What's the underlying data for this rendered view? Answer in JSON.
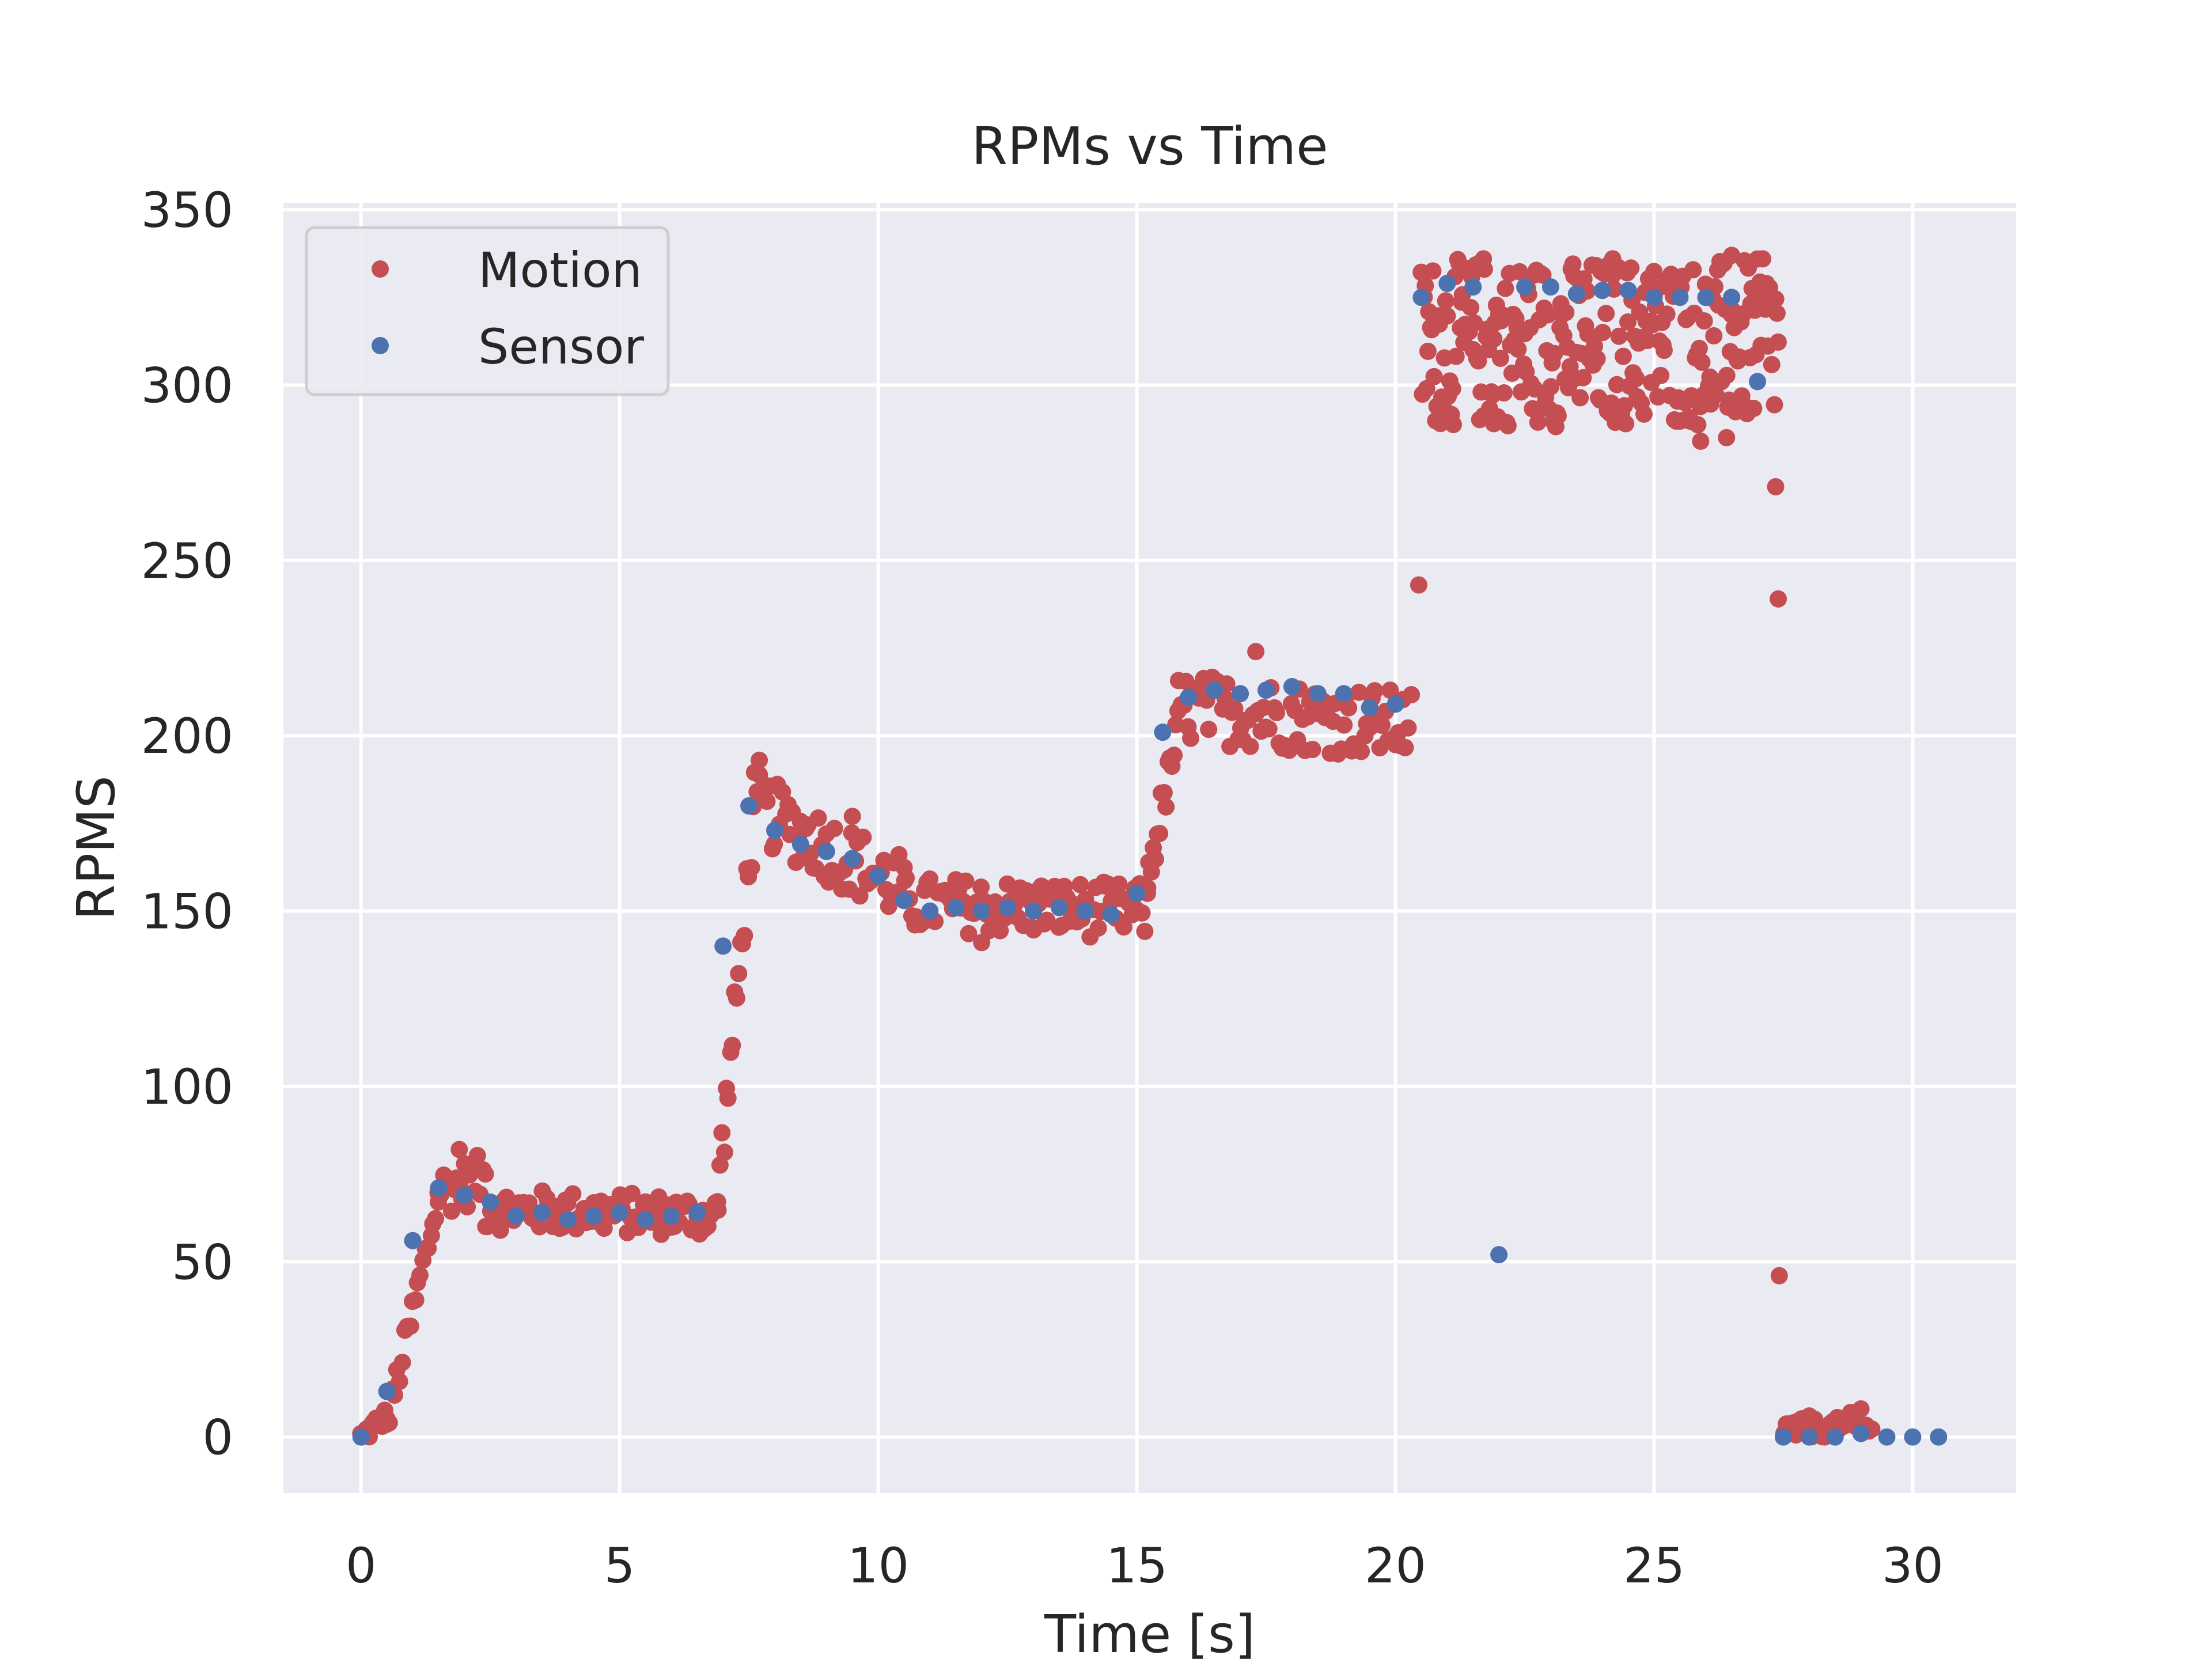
{
  "chart_data": {
    "type": "scatter",
    "title": "RPMs vs Time",
    "xlabel": "Time [s]",
    "ylabel": "RPMS",
    "xlim": [
      -1.5,
      32
    ],
    "ylim": [
      -16,
      352
    ],
    "xticks": [
      0,
      5,
      10,
      15,
      20,
      25,
      30
    ],
    "xtick_labels": [
      "0",
      "5",
      "10",
      "15",
      "20",
      "25",
      "30"
    ],
    "yticks": [
      0,
      50,
      100,
      150,
      200,
      250,
      300,
      350
    ],
    "ytick_labels": [
      "0",
      "50",
      "100",
      "150",
      "200",
      "250",
      "300",
      "350"
    ],
    "grid": true,
    "legend_position": "top-left",
    "colors": {
      "plot_background": "#EAEAF2",
      "grid": "#FFFFFF",
      "motion": "#C44E52",
      "sensor": "#4C72B0"
    },
    "series": [
      {
        "name": "Motion",
        "color": "#C44E52",
        "segments": [
          {
            "x_start": 0.0,
            "x_end": 0.5,
            "y_start": 0,
            "y_end": 6,
            "noise": 3,
            "step": 0.05
          },
          {
            "x_start": 0.5,
            "x_end": 1.5,
            "y_start": 3,
            "y_end": 68,
            "noise": 5,
            "step": 0.05
          },
          {
            "x_start": 1.5,
            "x_end": 2.4,
            "y_start": 70,
            "y_end": 74,
            "noise": 7,
            "step": 0.05
          },
          {
            "x_start": 2.4,
            "x_end": 6.9,
            "y_start": 65,
            "y_end": 63,
            "noise": 6,
            "step": 0.05
          },
          {
            "x_start": 6.9,
            "x_end": 7.6,
            "y_start": 70,
            "y_end": 178,
            "noise": 8,
            "step": 0.04
          },
          {
            "x_start": 7.6,
            "x_end": 10.5,
            "y_start": 180,
            "y_end": 156,
            "noise": 10,
            "step": 0.05
          },
          {
            "x_start": 10.5,
            "x_end": 15.2,
            "y_start": 152,
            "y_end": 150,
            "noise": 8,
            "step": 0.05
          },
          {
            "x_start": 15.2,
            "x_end": 15.8,
            "y_start": 158,
            "y_end": 202,
            "noise": 6,
            "step": 0.04
          },
          {
            "x_start": 15.8,
            "x_end": 20.3,
            "y_start": 208,
            "y_end": 203,
            "noise": 10,
            "step": 0.05
          },
          {
            "x_start": 20.5,
            "x_end": 27.4,
            "y_start": 312,
            "y_end": 312,
            "noise": 24,
            "step": 0.025
          },
          {
            "x_start": 27.5,
            "x_end": 29.2,
            "y_start": 2,
            "y_end": 3,
            "noise": 3,
            "step": 0.05
          }
        ],
        "points": [
          [
            20.45,
            243
          ],
          [
            27.35,
            271
          ],
          [
            27.4,
            239
          ],
          [
            27.42,
            46
          ],
          [
            21.7,
            336
          ],
          [
            24.2,
            336
          ],
          [
            26.5,
            337
          ],
          [
            27.1,
            336
          ],
          [
            21.9,
            289
          ],
          [
            25.9,
            284
          ],
          [
            26.4,
            285
          ],
          [
            1.9,
            82
          ],
          [
            7.7,
            193
          ],
          [
            9.5,
            177
          ],
          [
            17.3,
            224
          ],
          [
            12.0,
            141
          ],
          [
            28.8,
            7
          ],
          [
            29.0,
            8
          ],
          [
            27.6,
            3
          ],
          [
            28.0,
            6
          ]
        ]
      },
      {
        "name": "Sensor",
        "color": "#4C72B0",
        "points": [
          [
            0.0,
            0
          ],
          [
            0.5,
            13
          ],
          [
            1.0,
            56
          ],
          [
            1.5,
            71
          ],
          [
            2.0,
            69
          ],
          [
            2.5,
            67
          ],
          [
            3.0,
            63
          ],
          [
            3.5,
            64
          ],
          [
            4.0,
            62
          ],
          [
            4.5,
            63
          ],
          [
            5.0,
            64
          ],
          [
            5.5,
            62
          ],
          [
            6.0,
            63
          ],
          [
            6.5,
            64
          ],
          [
            7.0,
            140
          ],
          [
            7.5,
            180
          ],
          [
            8.0,
            173
          ],
          [
            8.5,
            169
          ],
          [
            9.0,
            167
          ],
          [
            9.5,
            165
          ],
          [
            10.0,
            160
          ],
          [
            10.5,
            153
          ],
          [
            11.0,
            150
          ],
          [
            11.5,
            151
          ],
          [
            12.0,
            150
          ],
          [
            12.5,
            151
          ],
          [
            13.0,
            150
          ],
          [
            13.5,
            151
          ],
          [
            14.0,
            150
          ],
          [
            14.5,
            149
          ],
          [
            15.0,
            155
          ],
          [
            15.5,
            201
          ],
          [
            16.0,
            211
          ],
          [
            16.5,
            213
          ],
          [
            17.0,
            212
          ],
          [
            17.5,
            213
          ],
          [
            18.0,
            214
          ],
          [
            18.5,
            212
          ],
          [
            19.0,
            212
          ],
          [
            19.5,
            208
          ],
          [
            20.0,
            209
          ],
          [
            20.5,
            325
          ],
          [
            21.0,
            329
          ],
          [
            21.5,
            328
          ],
          [
            22.0,
            52
          ],
          [
            22.5,
            328
          ],
          [
            23.0,
            328
          ],
          [
            23.5,
            326
          ],
          [
            24.0,
            327
          ],
          [
            24.5,
            327
          ],
          [
            25.0,
            325
          ],
          [
            25.5,
            325
          ],
          [
            26.0,
            325
          ],
          [
            26.5,
            325
          ],
          [
            27.0,
            301
          ],
          [
            27.5,
            0
          ],
          [
            28.0,
            0
          ],
          [
            28.5,
            0
          ],
          [
            29.0,
            1
          ],
          [
            29.5,
            0
          ],
          [
            30.0,
            0
          ],
          [
            30.5,
            0
          ]
        ]
      }
    ]
  }
}
